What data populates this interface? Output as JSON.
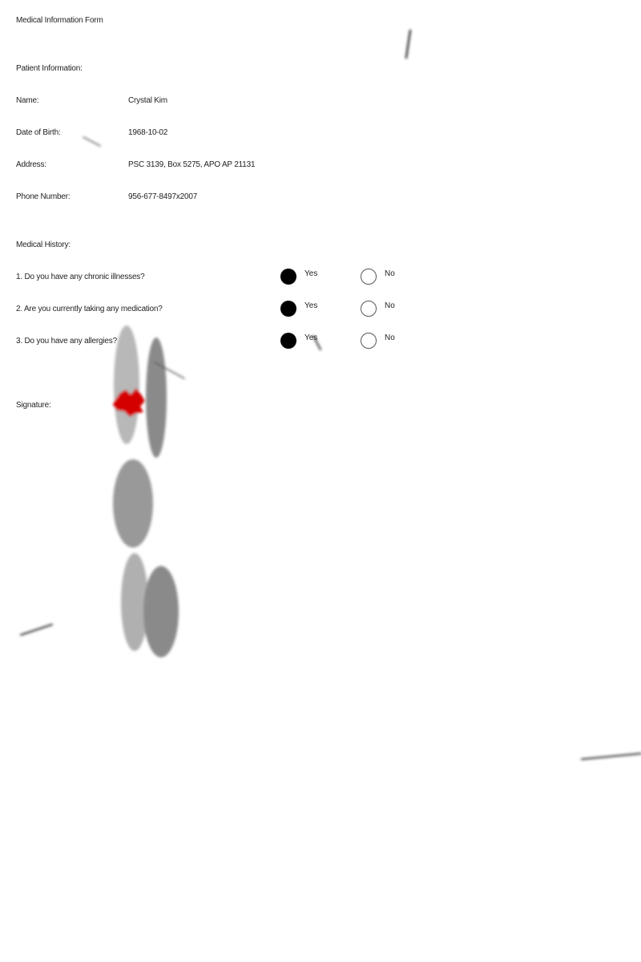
{
  "form": {
    "title": "Medical Information Form"
  },
  "patient": {
    "section_label": "Patient Information:",
    "fields": [
      {
        "label": "Name:",
        "value": "Crystal Kim"
      },
      {
        "label": "Date of Birth:",
        "value": "1968-10-02"
      },
      {
        "label": "Address:",
        "value": "PSC 3139, Box 5275, APO AP 21131"
      },
      {
        "label": "Phone Number:",
        "value": "956-677-8497x2007"
      }
    ]
  },
  "history": {
    "section_label": "Medical History:",
    "yes_label": "Yes",
    "no_label": "No",
    "questions": [
      {
        "text": "1. Do you have any chronic illnesses?",
        "answer": "Yes"
      },
      {
        "text": "2. Are you currently taking any medication?",
        "answer": "Yes"
      },
      {
        "text": "3. Do you have any allergies?",
        "answer": "Yes"
      }
    ]
  },
  "signature": {
    "label": "Signature:"
  },
  "colors": {
    "text": "#222222",
    "radio_selected": "#000000",
    "smudge_light": "#b8b8b8",
    "smudge_dark": "#8a8a8a",
    "stamp": "#d40000"
  }
}
